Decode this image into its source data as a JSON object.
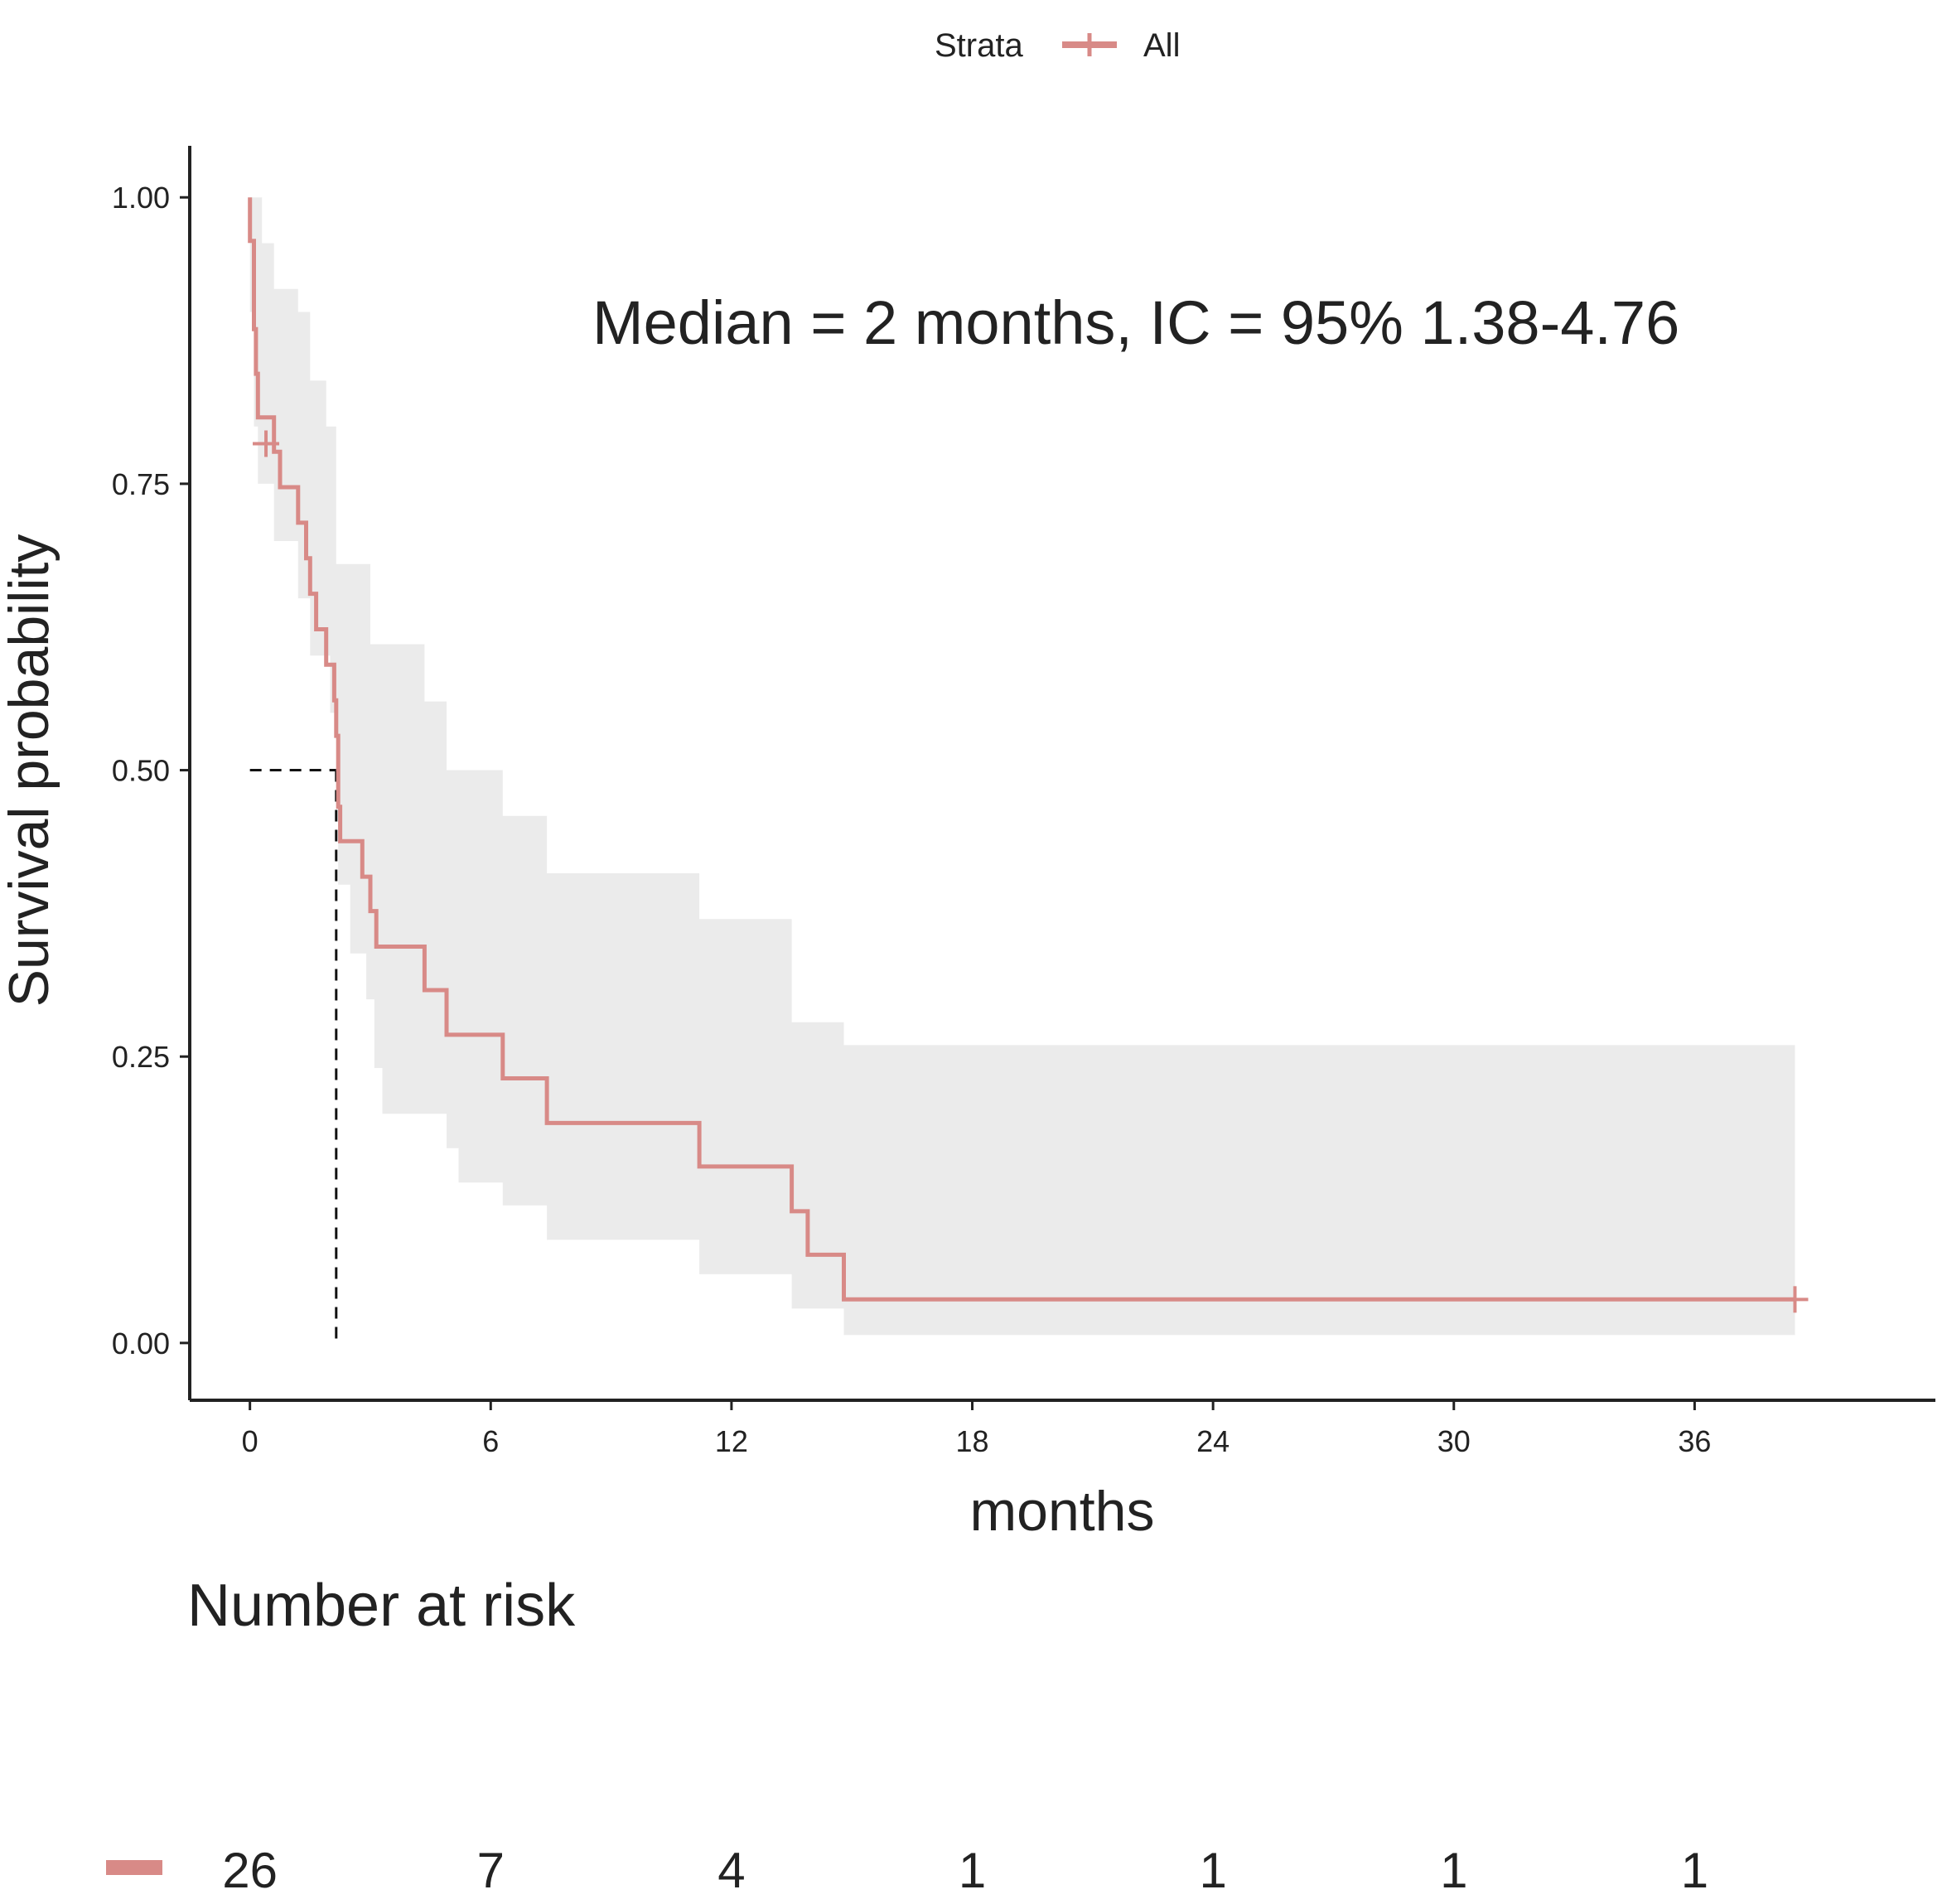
{
  "legend": {
    "title": "Strata",
    "label": "All",
    "color": "#d88a87"
  },
  "annotation": "Median =  2  months, IC = 95% 1.38-4.76",
  "risk_table": {
    "title": "Number at risk",
    "values": [
      "26",
      "7",
      "4",
      "1",
      "1",
      "1",
      "1"
    ]
  },
  "colors": {
    "line": "#d88a87",
    "ci": "#ebebeb",
    "axis": "#222222"
  },
  "chart_data": {
    "type": "line",
    "title": "",
    "xlabel": "months",
    "ylabel": "Survival probability",
    "xlim": [
      -1.5,
      42
    ],
    "ylim": [
      -0.05,
      1.045
    ],
    "xticks": [
      0,
      6,
      12,
      18,
      24,
      30,
      36
    ],
    "xtick_labels": [
      "0",
      "6",
      "12",
      "18",
      "24",
      "30",
      "36"
    ],
    "yticks": [
      0,
      0.25,
      0.5,
      0.75,
      1.0
    ],
    "ytick_labels": [
      "0.00",
      "0.25",
      "0.50",
      "0.75",
      "1.00"
    ],
    "grid": false,
    "legend_position": "top",
    "series": [
      {
        "name": "All",
        "step": true,
        "points": [
          [
            0,
            1.0
          ],
          [
            0,
            0.962
          ],
          [
            0.1,
            0.923
          ],
          [
            0.1,
            0.885
          ],
          [
            0.15,
            0.846
          ],
          [
            0.2,
            0.808
          ],
          [
            0.6,
            0.778
          ],
          [
            0.75,
            0.747
          ],
          [
            1.2,
            0.716
          ],
          [
            1.4,
            0.685
          ],
          [
            1.5,
            0.654
          ],
          [
            1.65,
            0.623
          ],
          [
            1.9,
            0.592
          ],
          [
            2.1,
            0.561
          ],
          [
            2.15,
            0.53
          ],
          [
            2.2,
            0.468
          ],
          [
            2.25,
            0.438
          ],
          [
            2.8,
            0.407
          ],
          [
            3.0,
            0.377
          ],
          [
            3.15,
            0.346
          ],
          [
            4.35,
            0.308
          ],
          [
            4.9,
            0.269
          ],
          [
            6.3,
            0.231
          ],
          [
            7.4,
            0.192
          ],
          [
            11.2,
            0.154
          ],
          [
            13.5,
            0.115
          ],
          [
            13.9,
            0.077
          ],
          [
            14.8,
            0.038
          ],
          [
            38.5,
            0.038
          ]
        ],
        "censored": [
          [
            0.4,
            0.785
          ],
          [
            38.5,
            0.038
          ]
        ],
        "ci_lower": [
          [
            0,
            0.9
          ],
          [
            0.1,
            0.8
          ],
          [
            0.2,
            0.75
          ],
          [
            0.6,
            0.7
          ],
          [
            1.2,
            0.65
          ],
          [
            1.5,
            0.6
          ],
          [
            2.0,
            0.55
          ],
          [
            2.2,
            0.4
          ],
          [
            2.5,
            0.34
          ],
          [
            2.9,
            0.3
          ],
          [
            3.1,
            0.24
          ],
          [
            3.3,
            0.2
          ],
          [
            4.9,
            0.17
          ],
          [
            5.2,
            0.14
          ],
          [
            6.3,
            0.12
          ],
          [
            7.4,
            0.09
          ],
          [
            11.2,
            0.06
          ],
          [
            13.5,
            0.03
          ],
          [
            14.8,
            0.007
          ],
          [
            38.5,
            0.007
          ]
        ],
        "ci_upper": [
          [
            0,
            1.0
          ],
          [
            0.25,
            1.0
          ],
          [
            0.3,
            0.96
          ],
          [
            0.6,
            0.92
          ],
          [
            1.2,
            0.9
          ],
          [
            1.5,
            0.84
          ],
          [
            1.9,
            0.8
          ],
          [
            2.15,
            0.68
          ],
          [
            3.0,
            0.61
          ],
          [
            4.35,
            0.56
          ],
          [
            4.9,
            0.5
          ],
          [
            6.3,
            0.46
          ],
          [
            7.4,
            0.41
          ],
          [
            11.2,
            0.37
          ],
          [
            13.5,
            0.28
          ],
          [
            14.8,
            0.26
          ],
          [
            38.5,
            0.26
          ]
        ],
        "median": {
          "x": 2.15,
          "y": 0.5
        }
      }
    ]
  }
}
